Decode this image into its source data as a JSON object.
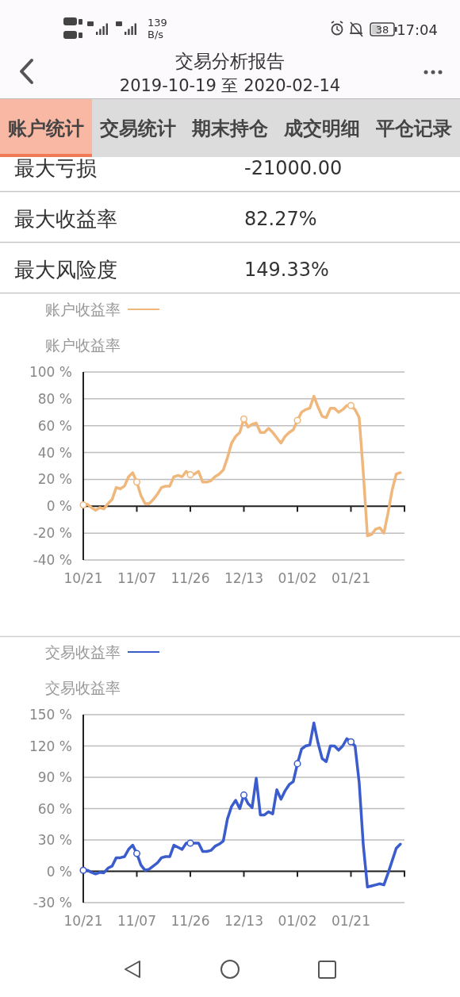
{
  "chart_data": [
    {
      "type": "other",
      "title": "交易分析报告",
      "subtitle": "2019-10-19 至 2020-02-14",
      "annotations": [
        "139",
        "B/s",
        "38",
        "17:04",
        "账户统计",
        "交易统计",
        "期末持仓",
        "成交明细",
        "平仓记录",
        "最大亏损",
        "-21000.00",
        "最大收益率",
        "82.27%",
        "最大风险度",
        "149.33%"
      ]
    },
    {
      "type": "line",
      "categories": [
        "10/21",
        null,
        null,
        null,
        null,
        null,
        null,
        null,
        null,
        null,
        null,
        null,
        null,
        "11/07",
        null,
        null,
        null,
        null,
        null,
        null,
        null,
        null,
        null,
        null,
        null,
        null,
        "11/26",
        null,
        null,
        null,
        null,
        null,
        null,
        null,
        null,
        null,
        null,
        null,
        null,
        "12/13",
        null,
        null,
        null,
        null,
        null,
        null,
        null,
        null,
        null,
        null,
        null,
        null,
        "01/02",
        null,
        null,
        null,
        null,
        null,
        null,
        null,
        null,
        null,
        null,
        null,
        null,
        "01/21",
        null,
        null,
        null,
        null,
        null,
        null,
        null,
        null,
        null,
        null,
        null,
        null,
        null
      ],
      "series": [
        {
          "name": "账户收益率",
          "color": "#f0b77c",
          "values": [
            1,
            1.5,
            -1,
            -3,
            -1,
            -2,
            2,
            5,
            14,
            13,
            15,
            22,
            25,
            18,
            8,
            2,
            2,
            5,
            9,
            14,
            15,
            15,
            22,
            23,
            22,
            26,
            23.5,
            24,
            26,
            18,
            18,
            19,
            22,
            24,
            27,
            36,
            47,
            52,
            55,
            65,
            59,
            61,
            62,
            55,
            55,
            58,
            55,
            51,
            47,
            52,
            55,
            57,
            64,
            70,
            72,
            73,
            82,
            74,
            67,
            66,
            73,
            73,
            70,
            72,
            75,
            75,
            72,
            66,
            25,
            -22,
            -21,
            -17,
            -16,
            -20,
            -5,
            12,
            24,
            25,
            null
          ]
        },
        {
          "type": "scatter",
          "color": "#f0b77c",
          "marker": "circle",
          "x": [
            "10/21",
            "11/07",
            "11/26",
            "12/13",
            "01/02",
            "01/21"
          ],
          "values": [
            1,
            18,
            23.5,
            65,
            64,
            75
          ]
        }
      ],
      "ylabel": "账户收益率",
      "ylim": [
        -40,
        100
      ],
      "yticks": [
        {
          "value": -40,
          "label": "-40 %"
        },
        {
          "value": -20,
          "label": "-20 %"
        },
        {
          "value": 0,
          "label": "0 %"
        },
        {
          "value": 20,
          "label": "20 %"
        },
        {
          "value": 40,
          "label": "40 %"
        },
        {
          "value": 60,
          "label": "60 %"
        },
        {
          "value": 80,
          "label": "80 %"
        },
        {
          "value": 100,
          "label": "100 %"
        }
      ],
      "grid": "y",
      "legend": "top left"
    },
    {
      "type": "line",
      "categories": [
        "10/21",
        null,
        null,
        null,
        null,
        null,
        null,
        null,
        null,
        null,
        null,
        null,
        null,
        "11/07",
        null,
        null,
        null,
        null,
        null,
        null,
        null,
        null,
        null,
        null,
        null,
        null,
        "11/26",
        null,
        null,
        null,
        null,
        null,
        null,
        null,
        null,
        null,
        null,
        null,
        null,
        "12/13",
        null,
        null,
        null,
        null,
        null,
        null,
        null,
        null,
        null,
        null,
        null,
        null,
        "01/02",
        null,
        null,
        null,
        null,
        null,
        null,
        null,
        null,
        null,
        null,
        null,
        null,
        "01/21",
        null,
        null,
        null,
        null,
        null,
        null,
        null,
        null,
        null,
        null,
        null,
        null,
        null
      ],
      "series": [
        {
          "name": "交易收益率",
          "color": "#3a5ccc",
          "values": [
            1,
            1,
            -1,
            -2.5,
            -1,
            -1.5,
            3,
            5,
            13,
            13,
            14,
            21,
            25,
            17,
            6,
            1,
            2,
            5,
            8,
            13,
            14,
            14,
            25,
            23,
            21,
            27,
            27,
            27,
            27,
            19,
            19,
            20,
            24,
            26,
            29,
            50,
            62,
            68,
            60,
            73,
            65,
            61,
            89,
            54,
            54,
            57,
            55,
            78,
            69,
            77,
            83,
            86,
            103,
            117,
            120,
            121,
            142,
            123,
            108,
            105,
            120,
            120,
            116,
            120,
            127,
            124,
            120,
            85,
            25,
            -15,
            -14,
            -13,
            -12,
            -13,
            -2,
            10,
            22,
            26,
            null
          ]
        },
        {
          "type": "scatter",
          "color": "#3a5ccc",
          "marker": "circle",
          "x": [
            "10/21",
            "11/07",
            "11/26",
            "12/13",
            "01/02",
            "01/21"
          ],
          "values": [
            1,
            17,
            27,
            73,
            103,
            124
          ]
        }
      ],
      "ylabel": "交易收益率",
      "ylim": [
        -30,
        150
      ],
      "yticks": [
        {
          "value": -30,
          "label": "-30 %"
        },
        {
          "value": 0,
          "label": "0 %"
        },
        {
          "value": 30,
          "label": "30 %"
        },
        {
          "value": 60,
          "label": "60 %"
        },
        {
          "value": 90,
          "label": "90 %"
        },
        {
          "value": 120,
          "label": "120 %"
        },
        {
          "value": 150,
          "label": "150 %"
        }
      ],
      "grid": "y",
      "legend": "top left"
    }
  ]
}
